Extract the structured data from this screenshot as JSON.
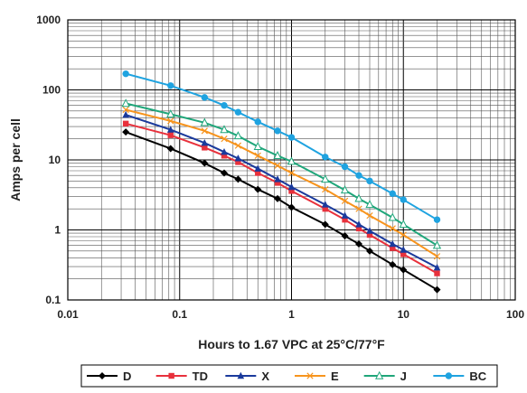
{
  "chart_data": {
    "type": "line",
    "title": "",
    "xlabel": "Hours to 1.67 VPC at 25°C/77°F",
    "ylabel": "Amps per cell",
    "x_scale": "log",
    "y_scale": "log",
    "xlim": [
      0.01,
      100
    ],
    "ylim": [
      0.1,
      1000
    ],
    "x_ticks": [
      "0.01",
      "0.1",
      "1",
      "10",
      "100"
    ],
    "y_ticks": [
      "0.1",
      "1",
      "10",
      "100",
      "1000"
    ],
    "grid": true,
    "legend_position": "bottom",
    "x": [
      0.033,
      0.083,
      0.167,
      0.25,
      0.333,
      0.5,
      0.75,
      1,
      2,
      3,
      4,
      5,
      8,
      10,
      20
    ],
    "series": [
      {
        "name": "D",
        "color": "#000000",
        "marker": "diamond-filled",
        "values": [
          25,
          14.5,
          9,
          6.5,
          5.3,
          3.8,
          2.8,
          2.1,
          1.2,
          0.82,
          0.63,
          0.5,
          0.32,
          0.27,
          0.14
        ]
      },
      {
        "name": "TD",
        "color": "#e8313c",
        "marker": "square-filled",
        "values": [
          33,
          22.5,
          15,
          11.5,
          9.3,
          6.5,
          4.7,
          3.6,
          2.0,
          1.4,
          1.05,
          0.85,
          0.55,
          0.45,
          0.24
        ]
      },
      {
        "name": "X",
        "color": "#1a3a9c",
        "marker": "triangle-filled",
        "values": [
          44,
          27,
          17.5,
          13,
          10.5,
          7.5,
          5.3,
          4.1,
          2.3,
          1.6,
          1.2,
          0.97,
          0.63,
          0.52,
          0.29
        ]
      },
      {
        "name": "E",
        "color": "#f7941d",
        "marker": "x",
        "values": [
          52,
          36,
          26,
          20,
          16,
          11.5,
          8.3,
          6.5,
          3.8,
          2.6,
          2.0,
          1.6,
          1.05,
          0.85,
          0.42
        ]
      },
      {
        "name": "J",
        "color": "#1fa67a",
        "marker": "triangle-open",
        "values": [
          64,
          45,
          34,
          27,
          22,
          15.5,
          11.5,
          9.5,
          5.3,
          3.7,
          2.8,
          2.3,
          1.5,
          1.2,
          0.6
        ]
      },
      {
        "name": "BC",
        "color": "#1fa3e0",
        "marker": "circle-filled",
        "values": [
          170,
          115,
          78,
          60,
          48,
          35,
          26,
          21,
          11,
          8,
          6,
          5,
          3.3,
          2.7,
          1.4
        ]
      }
    ]
  }
}
